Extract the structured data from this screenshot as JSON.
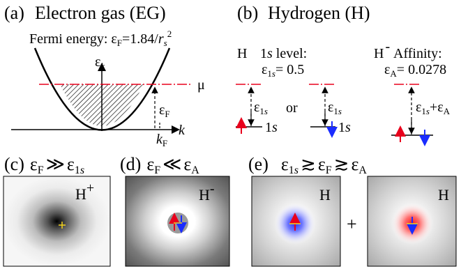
{
  "colors": {
    "up_arrow": "#e8001c",
    "down_arrow": "#1a2cff",
    "mu_line": "#e8001c",
    "marker": "#f2d21e",
    "blue_halo": "#4a56ff",
    "red_halo": "#ff3a3a"
  },
  "panel_a": {
    "label": "(a)",
    "title": "Electron gas (EG)",
    "fermi_prefix": "Fermi energy: ",
    "eps": "ε",
    "F": "F",
    "fermi_value": "=1.84/",
    "r": "r",
    "s": "s",
    "two": "2",
    "k": "k",
    "mu": "μ"
  },
  "panel_b": {
    "label": "(b)",
    "title": "Hydrogen (H)",
    "H": "H",
    "minus": "-",
    "level_prefix": "1",
    "level_s": "s",
    "level_suffix": " level:",
    "eps": "ε",
    "sub_1": "1",
    "sub_s": "s",
    "level_value": "= 0.5",
    "affinity_label": "Affinity:",
    "A": "A",
    "affinity_value": "= 0.0278",
    "or": "or",
    "plus": "+"
  },
  "panel_c": {
    "label": "(c)",
    "eps": "ε",
    "F": "F",
    "relation": "≫",
    "sub_1": "1",
    "sub_s": "s",
    "ion": "H",
    "ion_charge": "+"
  },
  "panel_d": {
    "label": "(d)",
    "eps": "ε",
    "F": "F",
    "relation": "≪",
    "A": "A",
    "ion": "H",
    "ion_charge": "-"
  },
  "panel_e": {
    "label": "(e)",
    "eps": "ε",
    "sub_1": "1",
    "sub_s": "s",
    "relation": "≳",
    "F": "F",
    "A": "A",
    "atom": "H",
    "plus": "+"
  }
}
